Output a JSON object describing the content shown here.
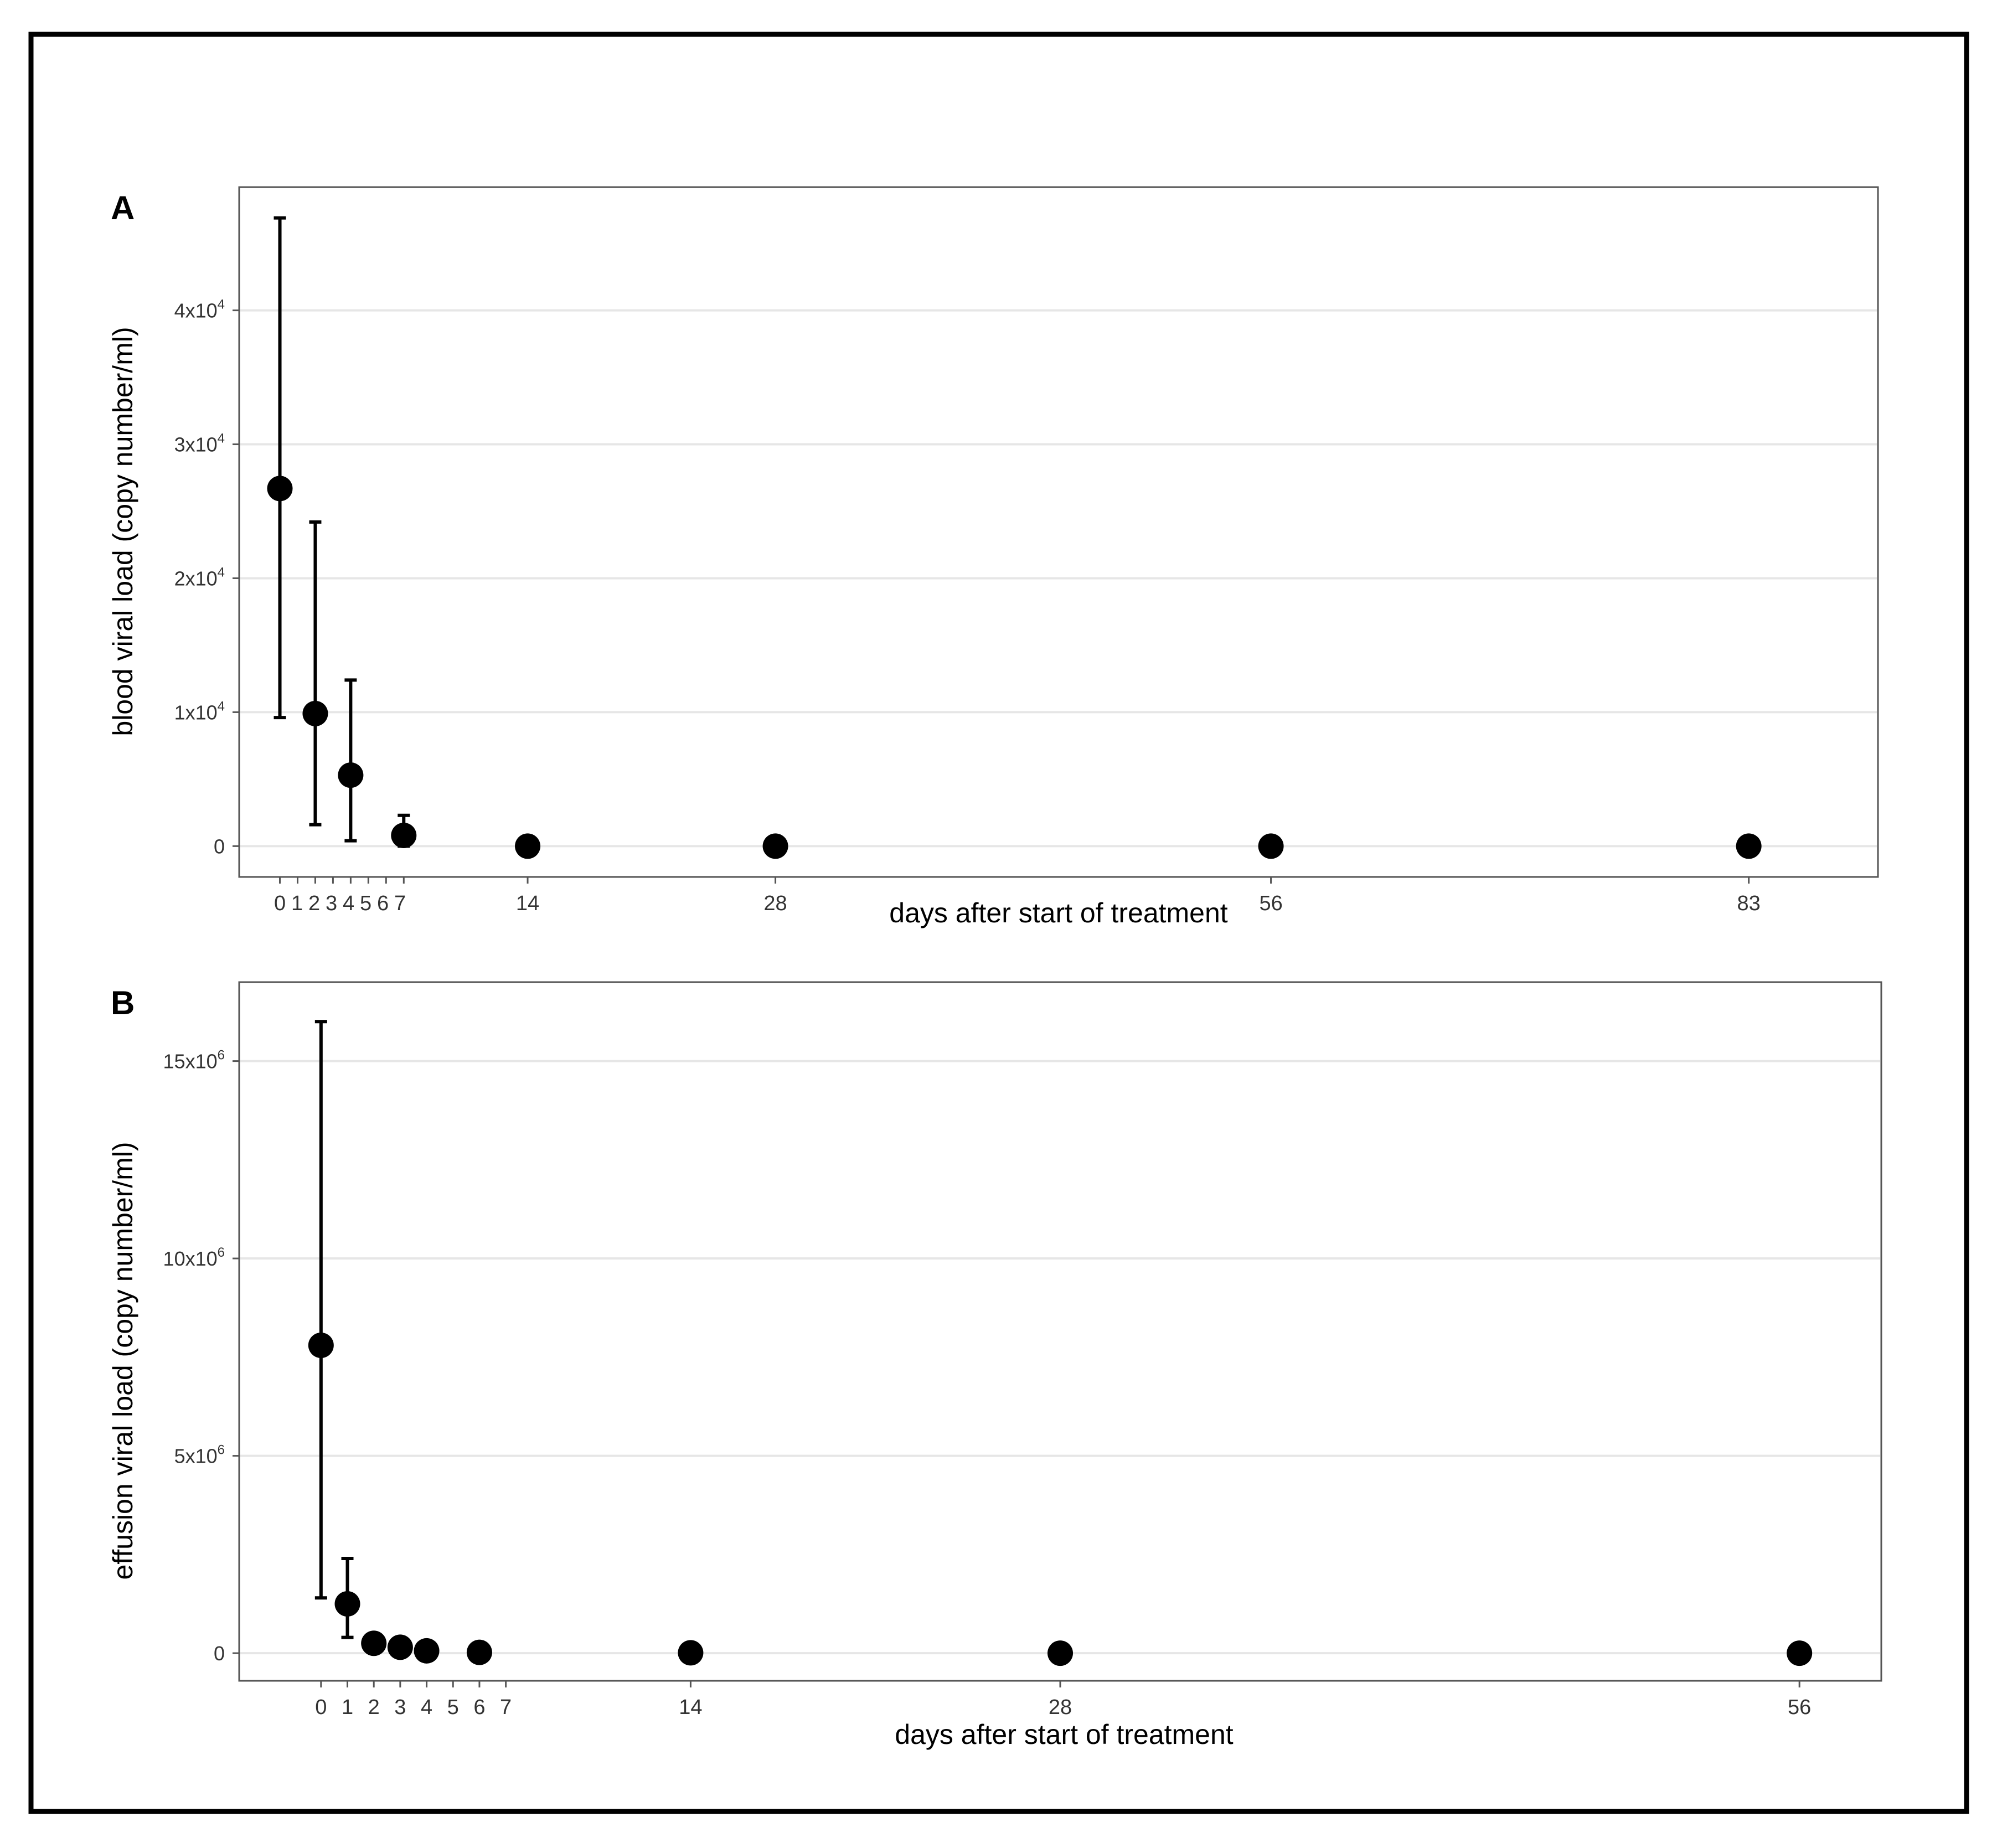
{
  "colors": {
    "points": "#000000",
    "gridlines": "#e6e6e6",
    "panel_border": "#555555",
    "frame": "#000000"
  },
  "chart_data": [
    {
      "panel_label": "A",
      "type": "scatter",
      "error_bars": true,
      "grid": "horizontal",
      "xlabel": "days after start of treatment",
      "ylabel": "blood viral load (copy number/ml)",
      "xlim": [
        -2.3,
        90.3
      ],
      "ylim": [
        -2300,
        49200
      ],
      "x_ticks": [
        0,
        1,
        2,
        3,
        4,
        5,
        6,
        7,
        14,
        28,
        56,
        83
      ],
      "y_ticks": [
        {
          "value": 0,
          "mantissa": "0",
          "exponent": ""
        },
        {
          "value": 10000,
          "mantissa": "1x10",
          "exponent": "4"
        },
        {
          "value": 20000,
          "mantissa": "2x10",
          "exponent": "4"
        },
        {
          "value": 30000,
          "mantissa": "3x10",
          "exponent": "4"
        },
        {
          "value": 40000,
          "mantissa": "4x10",
          "exponent": "4"
        }
      ],
      "points": [
        {
          "x": 0,
          "y": 26700,
          "low": 9600,
          "high": 46900
        },
        {
          "x": 2,
          "y": 9900,
          "low": 1600,
          "high": 24200
        },
        {
          "x": 4,
          "y": 5300,
          "low": 400,
          "high": 12400
        },
        {
          "x": 7,
          "y": 800,
          "low": 0,
          "high": 2300
        },
        {
          "x": 14,
          "y": 0
        },
        {
          "x": 28,
          "y": 0
        },
        {
          "x": 56,
          "y": 0
        },
        {
          "x": 83,
          "y": 0
        }
      ]
    },
    {
      "panel_label": "B",
      "type": "scatter",
      "error_bars": true,
      "grid": "horizontal",
      "xlabel": "days after start of treatment",
      "ylabel": "effusion viral load (copy number/ml)",
      "xlim": [
        -3.1,
        59.1
      ],
      "ylim": [
        -700000,
        17000000
      ],
      "x_ticks": [
        0,
        1,
        2,
        3,
        4,
        5,
        6,
        7,
        14,
        28,
        56
      ],
      "y_ticks": [
        {
          "value": 0,
          "mantissa": "0",
          "exponent": ""
        },
        {
          "value": 5000000,
          "mantissa": "5x10",
          "exponent": "6"
        },
        {
          "value": 10000000,
          "mantissa": "10x10",
          "exponent": "6"
        },
        {
          "value": 15000000,
          "mantissa": "15x10",
          "exponent": "6"
        }
      ],
      "points": [
        {
          "x": 0,
          "y": 7800000,
          "low": 1400000,
          "high": 16000000
        },
        {
          "x": 1,
          "y": 1250000,
          "low": 400000,
          "high": 2400000
        },
        {
          "x": 2,
          "y": 250000
        },
        {
          "x": 3,
          "y": 150000
        },
        {
          "x": 4,
          "y": 60000
        },
        {
          "x": 6,
          "y": 20000
        },
        {
          "x": 14,
          "y": 10000
        },
        {
          "x": 28,
          "y": 0
        },
        {
          "x": 56,
          "y": 0
        }
      ]
    }
  ]
}
